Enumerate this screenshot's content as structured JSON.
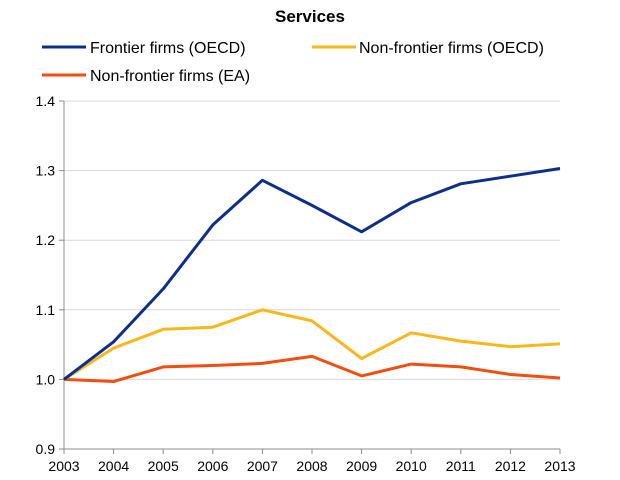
{
  "chart_data": {
    "type": "line",
    "title": "Services",
    "x": [
      "2003",
      "2004",
      "2005",
      "2006",
      "2007",
      "2008",
      "2009",
      "2010",
      "2011",
      "2012",
      "2013"
    ],
    "ylim": [
      0.9,
      1.4
    ],
    "yticks": [
      "0.9",
      "1.0",
      "1.1",
      "1.2",
      "1.3",
      "1.4"
    ],
    "grid": "horizontal",
    "legend_position": "top",
    "series": [
      {
        "name": "Frontier firms (OECD)",
        "color": "#0d2e8c",
        "values": [
          1.0,
          1.054,
          1.13,
          1.222,
          1.286,
          1.25,
          1.212,
          1.254,
          1.281,
          1.292,
          1.303
        ]
      },
      {
        "name": "Non-frontier firms (OECD)",
        "color": "#f9b71b",
        "values": [
          1.0,
          1.045,
          1.072,
          1.075,
          1.1,
          1.084,
          1.03,
          1.067,
          1.055,
          1.047,
          1.051
        ]
      },
      {
        "name": "Non-frontier firms (EA)",
        "color": "#f24e0f",
        "values": [
          1.0,
          0.997,
          1.018,
          1.02,
          1.023,
          1.033,
          1.005,
          1.022,
          1.018,
          1.007,
          1.002
        ]
      }
    ]
  }
}
